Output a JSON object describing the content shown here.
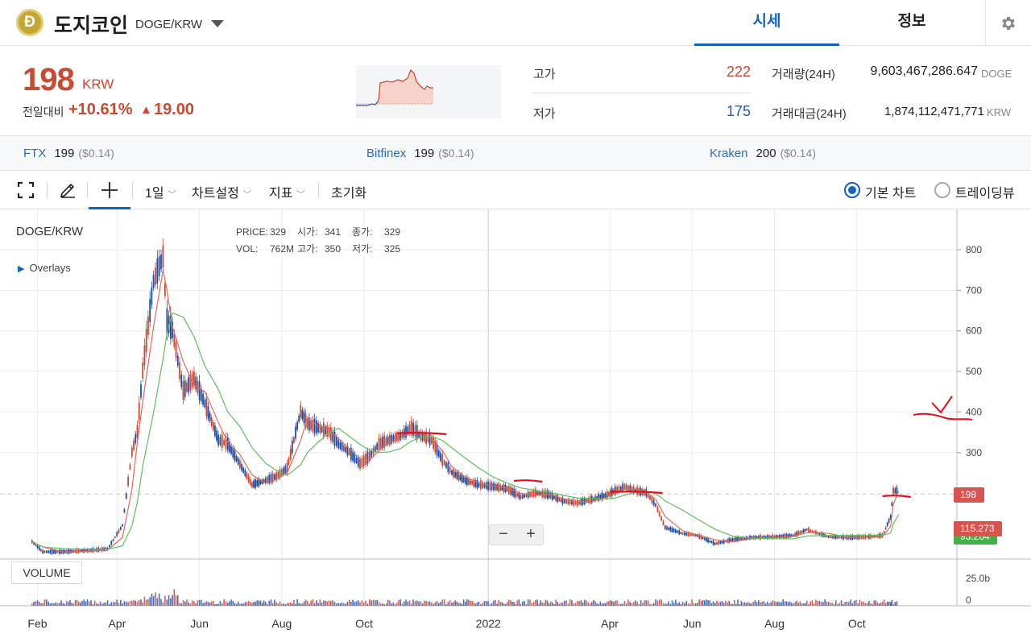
{
  "header": {
    "coin_symbol_glyph": "Ð",
    "coin_name": "도지코인",
    "pair": "DOGE/KRW",
    "tabs": [
      {
        "label": "시세",
        "active": true
      },
      {
        "label": "정보",
        "active": false
      }
    ],
    "accent_color": "#1261c4"
  },
  "price": {
    "current": "198",
    "unit": "KRW",
    "change_label": "전일대비",
    "change_pct": "+10.61%",
    "change_arrow": "▲",
    "change_abs": "19.00",
    "up_color": "#c84a31",
    "down_color": "#1e5bb5"
  },
  "stats": {
    "high_label": "고가",
    "high": "222",
    "low_label": "저가",
    "low": "175",
    "volume_label": "거래량(24H)",
    "volume": "9,603,467,286.647",
    "volume_unit": "DOGE",
    "value_label": "거래대금(24H)",
    "value": "1,874,112,471,771",
    "value_unit": "KRW"
  },
  "exchanges": [
    {
      "name": "FTX",
      "price": "199",
      "usd": "($0.14)"
    },
    {
      "name": "Bitfinex",
      "price": "199",
      "usd": "($0.14)"
    },
    {
      "name": "Kraken",
      "price": "200",
      "usd": "($0.14)"
    }
  ],
  "toolbar": {
    "fullscreen_icon": "fullscreen-icon",
    "draw_icon": "pencil-icon",
    "crosshair_icon": "crosshair-icon",
    "interval": "1일",
    "chart_settings": "차트설정",
    "indicators": "지표",
    "reset": "초기화",
    "chart_modes": [
      {
        "label": "기본 차트",
        "selected": true
      },
      {
        "label": "트레이딩뷰",
        "selected": false
      }
    ]
  },
  "chart": {
    "symbol": "DOGE/KRW",
    "ohlc_row1": [
      "PRICE:",
      "329",
      "시가:",
      "341",
      "종가:",
      "329"
    ],
    "ohlc_row2": [
      "VOL:",
      "762M",
      "고가:",
      "350",
      "저가:",
      "325"
    ],
    "overlays_label": "Overlays",
    "zoom_out": "−",
    "zoom_in": "+",
    "volume_label": "VOLUME",
    "current_price_tag": "198",
    "ma_tag_1": "115.273",
    "ma_tag_2": "93.264"
  },
  "chart_data": {
    "type": "line",
    "title": "",
    "xlabel": "",
    "ylabel": "",
    "x_ticks": [
      "Feb",
      "Apr",
      "Jun",
      "Aug",
      "Oct",
      "2022",
      "Apr",
      "Jun",
      "Aug",
      "Oct"
    ],
    "y_ticks": [
      800,
      700,
      600,
      500,
      400,
      300
    ],
    "ylim": [
      45,
      890
    ],
    "volume_ticks": [
      "25.0b",
      "0"
    ],
    "x_range": [
      "2021-01-15",
      "2022-12-01"
    ],
    "series": [
      {
        "x": [
          "2021-01-28",
          "2021-02-05",
          "2021-02-20",
          "2021-03-10",
          "2021-03-25",
          "2021-04-05",
          "2021-04-12",
          "2021-04-16",
          "2021-04-20",
          "2021-04-28",
          "2021-05-05",
          "2021-05-08",
          "2021-05-12",
          "2021-05-20",
          "2021-05-28",
          "2021-06-05",
          "2021-06-15",
          "2021-06-22",
          "2021-07-01",
          "2021-07-10",
          "2021-07-20",
          "2021-07-28",
          "2021-08-05",
          "2021-08-15",
          "2021-08-20",
          "2021-08-28",
          "2021-09-05",
          "2021-09-12",
          "2021-09-20",
          "2021-09-28",
          "2021-10-05",
          "2021-10-12",
          "2021-10-20",
          "2021-10-28",
          "2021-11-05",
          "2021-11-12",
          "2021-11-20",
          "2021-11-28",
          "2021-12-05",
          "2021-12-15",
          "2021-12-25",
          "2022-01-05",
          "2022-01-15",
          "2022-01-25",
          "2022-02-05",
          "2022-02-15",
          "2022-02-25",
          "2022-03-08",
          "2022-03-20",
          "2022-03-30",
          "2022-04-05",
          "2022-04-12",
          "2022-04-20",
          "2022-04-28",
          "2022-05-05",
          "2022-05-12",
          "2022-05-25",
          "2022-06-05",
          "2022-06-18",
          "2022-07-01",
          "2022-07-15",
          "2022-08-01",
          "2022-08-15",
          "2022-08-25",
          "2022-09-10",
          "2022-09-25",
          "2022-10-10",
          "2022-10-20",
          "2022-10-26",
          "2022-10-28",
          "2022-11-01"
        ],
        "y": [
          80,
          55,
          55,
          58,
          62,
          120,
          300,
          350,
          500,
          720,
          780,
          620,
          600,
          450,
          480,
          420,
          330,
          320,
          270,
          220,
          230,
          240,
          260,
          400,
          370,
          360,
          350,
          320,
          300,
          270,
          290,
          320,
          330,
          340,
          360,
          340,
          330,
          280,
          250,
          230,
          220,
          215,
          210,
          190,
          200,
          195,
          180,
          175,
          185,
          195,
          205,
          215,
          205,
          200,
          170,
          115,
          100,
          95,
          75,
          85,
          90,
          92,
          95,
          110,
          92,
          90,
          92,
          95,
          140,
          205,
          205
        ]
      }
    ]
  }
}
